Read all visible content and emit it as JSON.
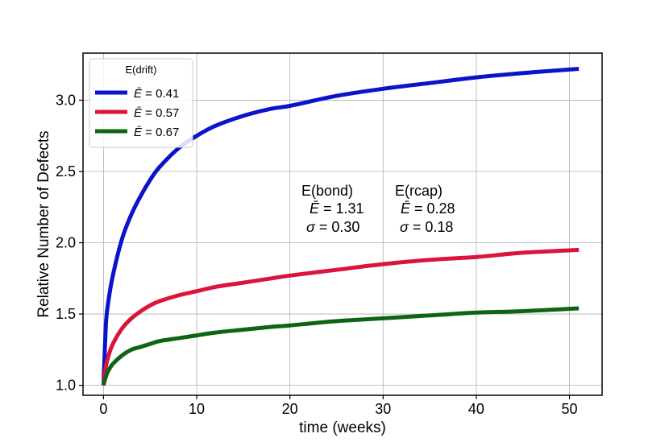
{
  "chart_data": {
    "type": "line",
    "title": "",
    "xlabel": "time (weeks)",
    "ylabel": "Relative Number of Defects",
    "xlim": [
      -2.2,
      53.5
    ],
    "ylim": [
      0.93,
      3.33
    ],
    "xticks": [
      0,
      10,
      20,
      30,
      40,
      50
    ],
    "xtick_labels": [
      "0",
      "10",
      "20",
      "30",
      "40",
      "50"
    ],
    "yticks": [
      1.0,
      1.5,
      2.0,
      2.5,
      3.0
    ],
    "ytick_labels": [
      "1.0",
      "1.5",
      "2.0",
      "2.5",
      "3.0"
    ],
    "grid": true,
    "legend_position": "top-left",
    "legend_title": "E(drift)",
    "series": [
      {
        "name": "Ē = 0.41",
        "label_main": "Ē",
        "label_value": " = 0.41",
        "color": "#0a14c8",
        "x": [
          0,
          0.25,
          0.5,
          1,
          2,
          3,
          4,
          5,
          6,
          8,
          10,
          12,
          15,
          18,
          20,
          25,
          30,
          35,
          40,
          45,
          51
        ],
        "y": [
          1.0,
          1.42,
          1.58,
          1.77,
          2.03,
          2.2,
          2.33,
          2.44,
          2.53,
          2.66,
          2.75,
          2.82,
          2.89,
          2.94,
          2.96,
          3.03,
          3.08,
          3.12,
          3.16,
          3.19,
          3.22
        ]
      },
      {
        "name": "Ē = 0.57",
        "label_main": "Ē",
        "label_value": " = 0.57",
        "color": "#dc143c",
        "x": [
          0,
          0.25,
          0.5,
          1,
          2,
          3,
          4,
          5,
          6,
          8,
          10,
          12,
          15,
          18,
          20,
          25,
          30,
          35,
          40,
          45,
          51
        ],
        "y": [
          1.0,
          1.13,
          1.2,
          1.29,
          1.4,
          1.47,
          1.52,
          1.56,
          1.59,
          1.63,
          1.66,
          1.69,
          1.72,
          1.75,
          1.77,
          1.81,
          1.85,
          1.88,
          1.9,
          1.93,
          1.95
        ]
      },
      {
        "name": "Ē = 0.67",
        "label_main": "Ē",
        "label_value": " = 0.67",
        "color": "#0f6414",
        "x": [
          0,
          0.25,
          0.5,
          1,
          2,
          3,
          4,
          5,
          6,
          8,
          10,
          12,
          15,
          18,
          20,
          25,
          30,
          35,
          40,
          45,
          51
        ],
        "y": [
          1.0,
          1.06,
          1.1,
          1.15,
          1.21,
          1.25,
          1.27,
          1.29,
          1.31,
          1.33,
          1.35,
          1.37,
          1.39,
          1.41,
          1.42,
          1.45,
          1.47,
          1.49,
          1.51,
          1.52,
          1.54
        ]
      }
    ],
    "annotations": {
      "bond_header": "E(bond)",
      "bond_e_sym": "Ē",
      "bond_e_val": " = 1.31",
      "bond_sigma_sym": "σ",
      "bond_sigma_val": " = 0.30",
      "rcap_header": "E(rcap)",
      "rcap_e_sym": "Ē",
      "rcap_e_val": " = 0.28",
      "rcap_sigma_sym": "σ",
      "rcap_sigma_val": " = 0.18"
    }
  }
}
